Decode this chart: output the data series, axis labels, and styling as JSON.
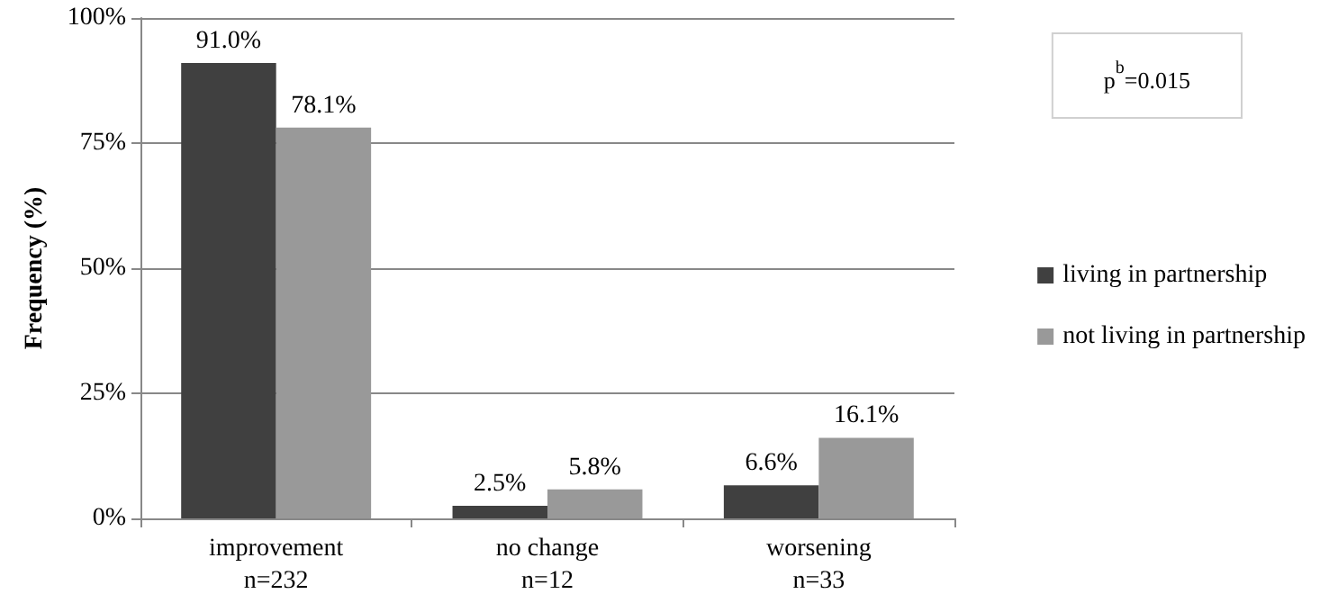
{
  "chart_data": {
    "type": "bar",
    "ylabel": "Frequency (%)",
    "categories": [
      "improvement\nn=232",
      "no change\nn=12",
      "worsening\nn=33"
    ],
    "series": [
      {
        "name": "living in partnership",
        "color": "#404040",
        "values": [
          91.0,
          2.5,
          6.6
        ],
        "value_labels": [
          "91.0%",
          "2.5%",
          "6.6%"
        ]
      },
      {
        "name": "not living in partnership",
        "color": "#999999",
        "values": [
          78.1,
          5.8,
          16.1
        ],
        "value_labels": [
          "78.1%",
          "5.8%",
          "16.1%"
        ]
      }
    ],
    "ylim": [
      0,
      100
    ],
    "yticks": [
      {
        "value": 0,
        "label": "0%"
      },
      {
        "value": 25,
        "label": "25%"
      },
      {
        "value": 50,
        "label": "50%"
      },
      {
        "value": 75,
        "label": "75%"
      },
      {
        "value": 100,
        "label": "100%"
      }
    ],
    "grid": "y",
    "legend": "right",
    "annotations": [
      "p$^{b}$=0.015"
    ]
  }
}
